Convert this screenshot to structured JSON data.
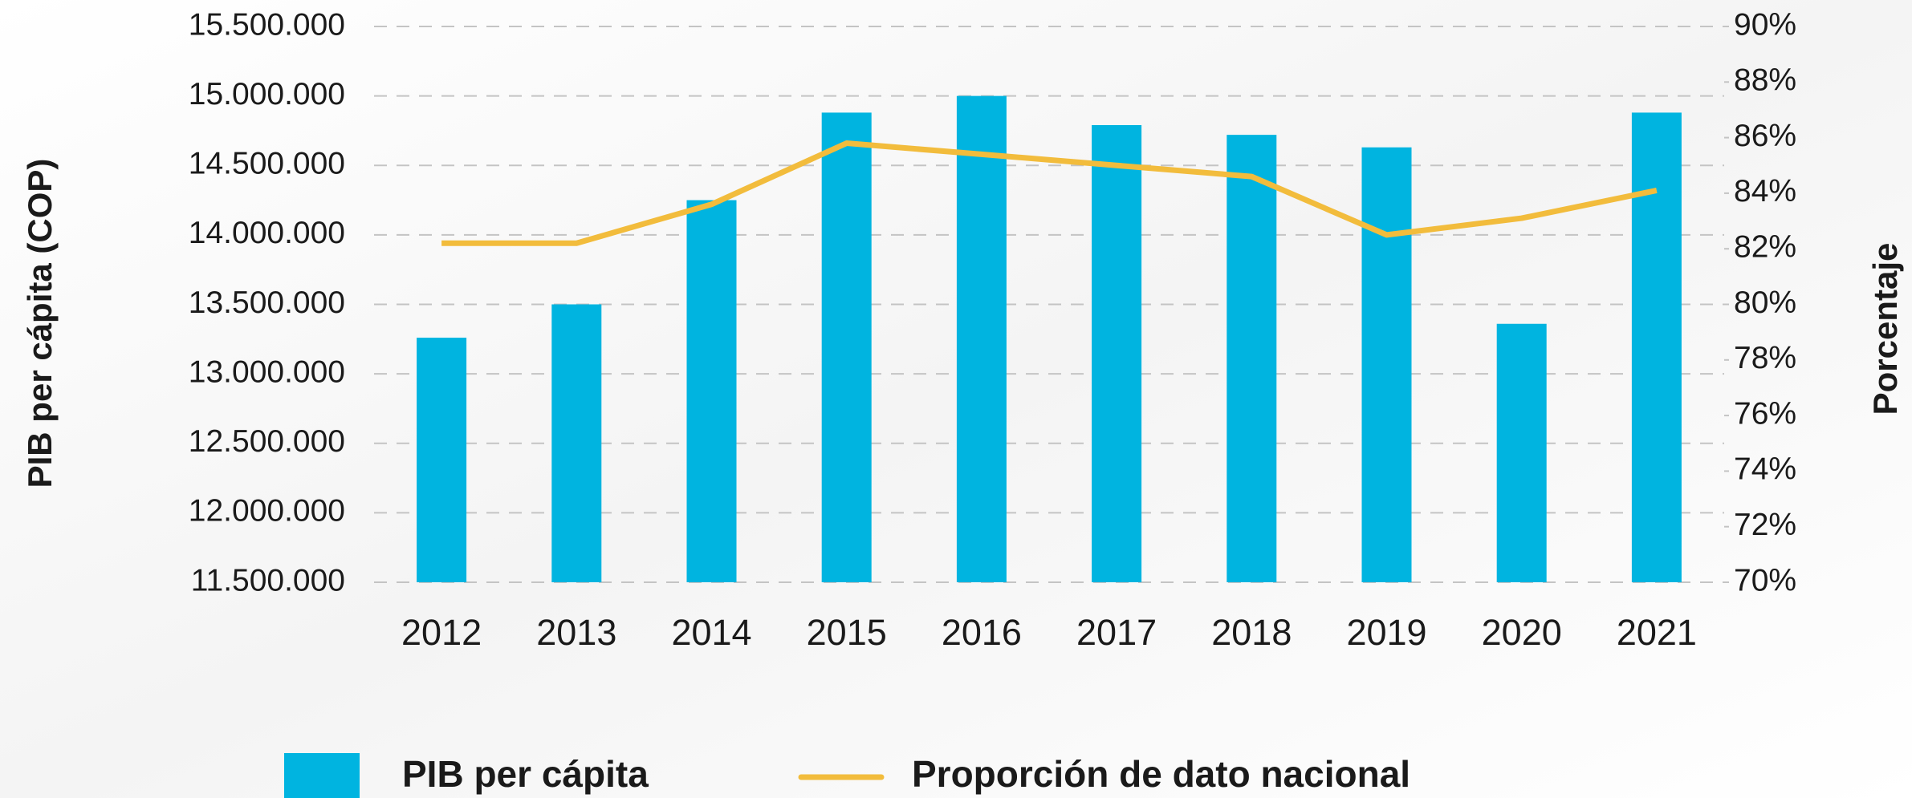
{
  "chart_data": {
    "type": "bar_line",
    "categories": [
      "2012",
      "2013",
      "2014",
      "2015",
      "2016",
      "2017",
      "2018",
      "2019",
      "2020",
      "2021"
    ],
    "series": [
      {
        "name": "PIB per cápita",
        "type": "bar",
        "color": "#00b4e0",
        "values": [
          13260000,
          13500000,
          14250000,
          14880000,
          15000000,
          14790000,
          14720000,
          14630000,
          13360000,
          14880000
        ]
      },
      {
        "name": "Proporción de dato nacional",
        "type": "line",
        "axis": "y2",
        "color": "#f2bc3c",
        "values": [
          82.2,
          82.2,
          83.6,
          85.8,
          85.4,
          85.0,
          84.6,
          82.5,
          83.1,
          84.1
        ]
      }
    ],
    "ylabel": "PIB per cápita (COP)",
    "y2label": "Porcentaje",
    "ylim": [
      11500000,
      15500000
    ],
    "yticks": [
      {
        "value": 11500000,
        "label": "11.500.000"
      },
      {
        "value": 12000000,
        "label": "12.000.000"
      },
      {
        "value": 12500000,
        "label": "12.500.000"
      },
      {
        "value": 13000000,
        "label": "13.000.000"
      },
      {
        "value": 13500000,
        "label": "13.500.000"
      },
      {
        "value": 14000000,
        "label": "14.000.000"
      },
      {
        "value": 14500000,
        "label": "14.500.000"
      },
      {
        "value": 15000000,
        "label": "15.000.000"
      },
      {
        "value": 15500000,
        "label": "15.500.000"
      }
    ],
    "y2lim": [
      70,
      90
    ],
    "y2ticks": [
      {
        "value": 70,
        "label": "70%"
      },
      {
        "value": 72,
        "label": "72%"
      },
      {
        "value": 74,
        "label": "74%"
      },
      {
        "value": 76,
        "label": "76%"
      },
      {
        "value": 78,
        "label": "78%"
      },
      {
        "value": 80,
        "label": "80%"
      },
      {
        "value": 82,
        "label": "82%"
      },
      {
        "value": 84,
        "label": "84%"
      },
      {
        "value": 86,
        "label": "86%"
      },
      {
        "value": 88,
        "label": "88%"
      },
      {
        "value": 90,
        "label": "90%"
      }
    ],
    "grid": true,
    "legend": "bottom"
  }
}
